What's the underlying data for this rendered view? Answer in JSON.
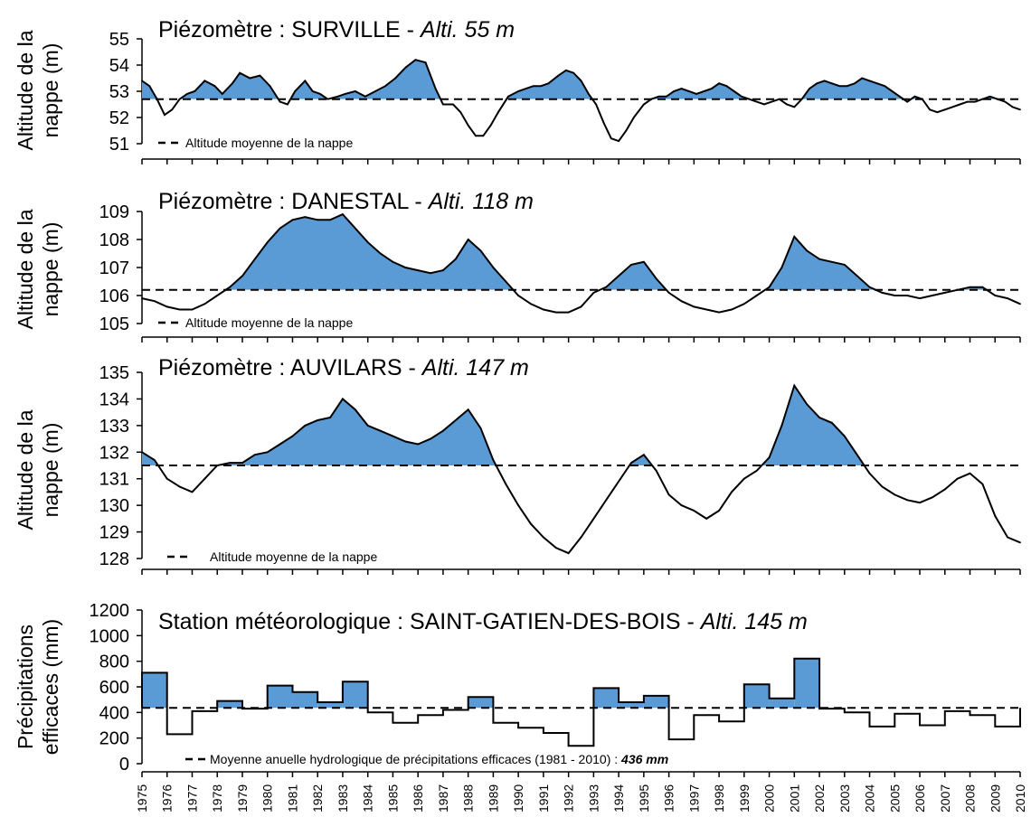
{
  "colors": {
    "fill": "#5b9bd5",
    "line": "#000000",
    "background": "#ffffff"
  },
  "x_axis": {
    "tick_labels": [
      "1975",
      "1976",
      "1977",
      "1978",
      "1979",
      "1980",
      "1981",
      "1982",
      "1983",
      "1984",
      "1985",
      "1986",
      "1987",
      "1988",
      "1989",
      "1990",
      "1991",
      "1992",
      "1993",
      "1994",
      "1995",
      "1996",
      "1997",
      "1998",
      "1999",
      "2000",
      "2001",
      "2002",
      "2003",
      "2004",
      "2005",
      "2006",
      "2007",
      "2008",
      "2009",
      "2010"
    ]
  },
  "chart_data": [
    {
      "type": "area",
      "title": "Piézomètre : SURVILLE - ",
      "title_italic": "Alti. 55 m",
      "ylabel_line1": "Altitude de la",
      "ylabel_line2": "nappe (m)",
      "yticks": [
        "55",
        "54",
        "53",
        "52",
        "51"
      ],
      "ylim": [
        51,
        55
      ],
      "xlim": [
        1975,
        2010
      ],
      "mean": 52.7,
      "legend": "Altitude moyenne de la nappe",
      "x": [
        1975,
        1975.3,
        1975.6,
        1975.9,
        1976.2,
        1976.5,
        1976.8,
        1977.1,
        1977.5,
        1977.9,
        1978.2,
        1978.6,
        1978.9,
        1979.3,
        1979.7,
        1980.1,
        1980.5,
        1980.8,
        1981.1,
        1981.5,
        1981.8,
        1982.1,
        1982.4,
        1982.8,
        1983.1,
        1983.5,
        1983.9,
        1984.3,
        1984.7,
        1985.1,
        1985.5,
        1985.9,
        1986.3,
        1986.7,
        1987.0,
        1987.4,
        1987.7,
        1988.0,
        1988.3,
        1988.6,
        1988.9,
        1989.2,
        1989.6,
        1990.0,
        1990.3,
        1990.6,
        1990.9,
        1991.2,
        1991.6,
        1991.9,
        1992.2,
        1992.5,
        1992.8,
        1993.1,
        1993.4,
        1993.7,
        1994.0,
        1994.3,
        1994.6,
        1995.0,
        1995.3,
        1995.6,
        1995.9,
        1996.2,
        1996.5,
        1996.8,
        1997.1,
        1997.4,
        1997.7,
        1998.0,
        1998.3,
        1998.6,
        1998.9,
        1999.2,
        1999.5,
        1999.8,
        2000.1,
        2000.4,
        2000.7,
        2001.0,
        2001.3,
        2001.6,
        2001.9,
        2002.2,
        2002.5,
        2002.8,
        2003.1,
        2003.4,
        2003.7,
        2004.0,
        2004.3,
        2004.6,
        2004.9,
        2005.2,
        2005.5,
        2005.8,
        2006.1,
        2006.4,
        2006.7,
        2007.0,
        2007.3,
        2007.6,
        2007.9,
        2008.2,
        2008.5,
        2008.8,
        2009.1,
        2009.4,
        2009.7,
        2010.0
      ],
      "y": [
        53.4,
        53.2,
        52.7,
        52.1,
        52.3,
        52.7,
        52.9,
        53.0,
        53.4,
        53.2,
        52.9,
        53.3,
        53.7,
        53.5,
        53.6,
        53.2,
        52.6,
        52.5,
        53.0,
        53.4,
        53.0,
        52.9,
        52.7,
        52.8,
        52.9,
        53.0,
        52.8,
        53.0,
        53.2,
        53.5,
        53.9,
        54.2,
        54.1,
        53.1,
        52.5,
        52.5,
        52.2,
        51.7,
        51.3,
        51.3,
        51.7,
        52.2,
        52.8,
        53.0,
        53.1,
        53.2,
        53.2,
        53.3,
        53.6,
        53.8,
        53.7,
        53.4,
        52.9,
        52.5,
        51.8,
        51.2,
        51.1,
        51.5,
        52.0,
        52.5,
        52.7,
        52.8,
        52.8,
        53.0,
        53.1,
        53.0,
        52.9,
        53.0,
        53.1,
        53.3,
        53.2,
        53.0,
        52.8,
        52.7,
        52.6,
        52.5,
        52.6,
        52.7,
        52.5,
        52.4,
        52.7,
        53.1,
        53.3,
        53.4,
        53.3,
        53.2,
        53.2,
        53.3,
        53.5,
        53.4,
        53.3,
        53.2,
        53.0,
        52.8,
        52.6,
        52.8,
        52.7,
        52.3,
        52.2,
        52.3,
        52.4,
        52.5,
        52.6,
        52.6,
        52.7,
        52.8,
        52.7,
        52.6,
        52.4,
        52.3
      ],
      "y_note": "mean line at 52.7 m"
    },
    {
      "type": "area",
      "title": "Piézomètre : DANESTAL - ",
      "title_italic": "Alti. 118 m",
      "ylabel_line1": "Altitude de la",
      "ylabel_line2": "nappe (m)",
      "yticks": [
        "109",
        "108",
        "107",
        "106",
        "105"
      ],
      "ylim": [
        105,
        109
      ],
      "xlim": [
        1975,
        2010
      ],
      "mean": 106.2,
      "legend": "Altitude moyenne de la nappe",
      "x": [
        1975,
        1975.5,
        1976,
        1976.5,
        1977,
        1977.5,
        1978,
        1978.5,
        1979,
        1979.5,
        1980,
        1980.5,
        1981,
        1981.5,
        1982,
        1982.5,
        1983,
        1983.5,
        1984,
        1984.5,
        1985,
        1985.5,
        1986,
        1986.5,
        1987,
        1987.5,
        1988,
        1988.5,
        1989,
        1989.5,
        1990,
        1990.5,
        1991,
        1991.5,
        1992,
        1992.5,
        1993,
        1993.5,
        1994,
        1994.5,
        1995,
        1995.5,
        1996,
        1996.5,
        1997,
        1997.5,
        1998,
        1998.5,
        1999,
        1999.5,
        2000,
        2000.5,
        2001,
        2001.5,
        2002,
        2002.5,
        2003,
        2003.5,
        2004,
        2004.5,
        2005,
        2005.5,
        2006,
        2006.5,
        2007,
        2007.5,
        2008,
        2008.5,
        2009,
        2009.5,
        2010
      ],
      "y": [
        105.9,
        105.8,
        105.6,
        105.5,
        105.5,
        105.7,
        106.0,
        106.3,
        106.7,
        107.3,
        107.9,
        108.4,
        108.7,
        108.8,
        108.7,
        108.7,
        108.9,
        108.4,
        107.9,
        107.5,
        107.2,
        107.0,
        106.9,
        106.8,
        106.9,
        107.3,
        108.0,
        107.6,
        107.0,
        106.5,
        106.0,
        105.7,
        105.5,
        105.4,
        105.4,
        105.6,
        106.1,
        106.3,
        106.7,
        107.1,
        107.2,
        106.6,
        106.1,
        105.8,
        105.6,
        105.5,
        105.4,
        105.5,
        105.7,
        106.0,
        106.3,
        107.0,
        108.1,
        107.6,
        107.3,
        107.2,
        107.1,
        106.7,
        106.3,
        106.1,
        106.0,
        106.0,
        105.9,
        106.0,
        106.1,
        106.2,
        106.3,
        106.3,
        106.0,
        105.9,
        105.7
      ]
    },
    {
      "type": "area",
      "title": "Piézomètre : AUVILARS - ",
      "title_italic": "Alti. 147 m",
      "ylabel_line1": "Altitude de la",
      "ylabel_line2": "nappe (m)",
      "yticks": [
        "135",
        "134",
        "133",
        "132",
        "131",
        "130",
        "129",
        "128"
      ],
      "ylim": [
        128,
        135
      ],
      "xlim": [
        1975,
        2010
      ],
      "mean": 131.5,
      "legend": "Altitude moyenne de la nappe",
      "x": [
        1975,
        1975.5,
        1976,
        1976.5,
        1977,
        1977.5,
        1978,
        1978.5,
        1979,
        1979.5,
        1980,
        1980.5,
        1981,
        1981.5,
        1982,
        1982.5,
        1983,
        1983.5,
        1984,
        1984.5,
        1985,
        1985.5,
        1986,
        1986.5,
        1987,
        1987.5,
        1988,
        1988.5,
        1989,
        1989.5,
        1990,
        1990.5,
        1991,
        1991.5,
        1992,
        1992.5,
        1993,
        1993.5,
        1994,
        1994.5,
        1995,
        1995.5,
        1996,
        1996.5,
        1997,
        1997.5,
        1998,
        1998.5,
        1999,
        1999.5,
        2000,
        2000.5,
        2001,
        2001.5,
        2002,
        2002.5,
        2003,
        2003.5,
        2004,
        2004.5,
        2005,
        2005.5,
        2006,
        2006.5,
        2007,
        2007.5,
        2008,
        2008.5,
        2009,
        2009.5,
        2010
      ],
      "y": [
        132.0,
        131.7,
        131.0,
        130.7,
        130.5,
        131.0,
        131.5,
        131.6,
        131.6,
        131.9,
        132.0,
        132.3,
        132.6,
        133.0,
        133.2,
        133.3,
        134.0,
        133.6,
        133.0,
        132.8,
        132.6,
        132.4,
        132.3,
        132.5,
        132.8,
        133.2,
        133.6,
        132.9,
        131.7,
        130.8,
        130.0,
        129.3,
        128.8,
        128.4,
        128.2,
        128.8,
        129.5,
        130.2,
        130.9,
        131.6,
        131.9,
        131.3,
        130.4,
        130.0,
        129.8,
        129.5,
        129.8,
        130.5,
        131.0,
        131.3,
        131.8,
        133.0,
        134.5,
        133.8,
        133.3,
        133.1,
        132.6,
        131.9,
        131.2,
        130.7,
        130.4,
        130.2,
        130.1,
        130.3,
        130.6,
        131.0,
        131.2,
        130.8,
        129.6,
        128.8,
        128.6
      ]
    },
    {
      "type": "bar",
      "title": "Station météorologique : SAINT-GATIEN-DES-BOIS - ",
      "title_italic": "Alti. 145 m",
      "ylabel_line1": "Précipitations",
      "ylabel_line2": "efficaces (mm)",
      "yticks": [
        "1200",
        "1000",
        "800",
        "600",
        "400",
        "200",
        "0"
      ],
      "ylim": [
        0,
        1200
      ],
      "xlim": [
        1975,
        2010
      ],
      "mean": 436,
      "legend": "Moyenne anuelle hydrologique de précipitations efficaces  (1981 - 2010) : ",
      "legend_bold": "436 mm",
      "categories": [
        "1975",
        "1976",
        "1977",
        "1978",
        "1979",
        "1980",
        "1981",
        "1982",
        "1983",
        "1984",
        "1985",
        "1986",
        "1987",
        "1988",
        "1989",
        "1990",
        "1991",
        "1992",
        "1993",
        "1994",
        "1995",
        "1996",
        "1997",
        "1998",
        "1999",
        "2000",
        "2001",
        "2002",
        "2003",
        "2004",
        "2005",
        "2006",
        "2007",
        "2008",
        "2009"
      ],
      "values": [
        710,
        230,
        410,
        490,
        430,
        610,
        560,
        480,
        640,
        400,
        320,
        380,
        420,
        520,
        320,
        280,
        240,
        140,
        590,
        480,
        530,
        190,
        380,
        330,
        620,
        510,
        820,
        430,
        400,
        290,
        390,
        300,
        410,
        380,
        290
      ]
    }
  ]
}
